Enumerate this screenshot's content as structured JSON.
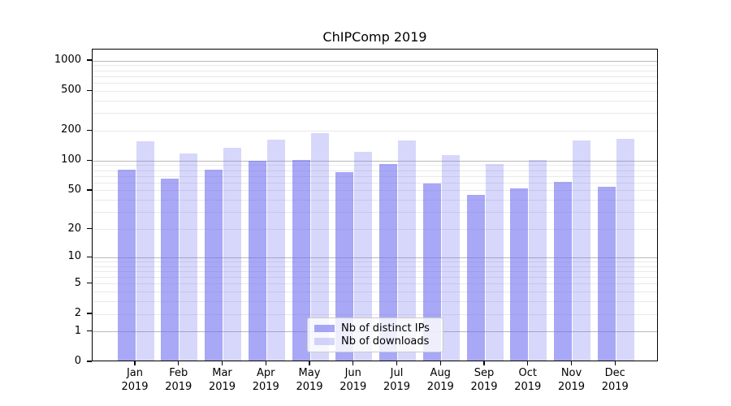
{
  "figure": {
    "title": "ChIPComp 2019"
  },
  "colors": {
    "ips_bar": "rgba(110,110,240,0.6)",
    "downloads_bar": "rgba(110,110,240,0.28)",
    "grid_major": "#b9b9b9",
    "grid_minor": "#e9e9e9",
    "axis": "#000000"
  },
  "legend": {
    "items": [
      {
        "series": "ips_bar",
        "label": "Nb of distinct IPs"
      },
      {
        "series": "downloads_bar",
        "label": "Nb of downloads"
      }
    ]
  },
  "chart_data": {
    "type": "bar",
    "title": "ChIPComp 2019",
    "categories": [
      "Jan 2019",
      "Feb 2019",
      "Mar 2019",
      "Apr 2019",
      "May 2019",
      "Jun 2019",
      "Jul 2019",
      "Aug 2019",
      "Sep 2019",
      "Oct 2019",
      "Nov 2019",
      "Dec 2019"
    ],
    "series": [
      {
        "name": "Nb of distinct IPs",
        "values": [
          78,
          64,
          78,
          96,
          98,
          75,
          90,
          57,
          44,
          51,
          59,
          53
        ]
      },
      {
        "name": "Nb of downloads",
        "values": [
          151,
          114,
          130,
          158,
          184,
          119,
          155,
          111,
          90,
          99,
          155,
          161
        ]
      }
    ],
    "xlabel": "",
    "ylabel": "",
    "yscale": "log1p",
    "ylim": [
      0,
      1300
    ],
    "y_ticks": [
      0,
      1,
      2,
      5,
      10,
      20,
      50,
      100,
      200,
      500,
      1000
    ],
    "grid": "both",
    "legend_position": "lower center"
  }
}
